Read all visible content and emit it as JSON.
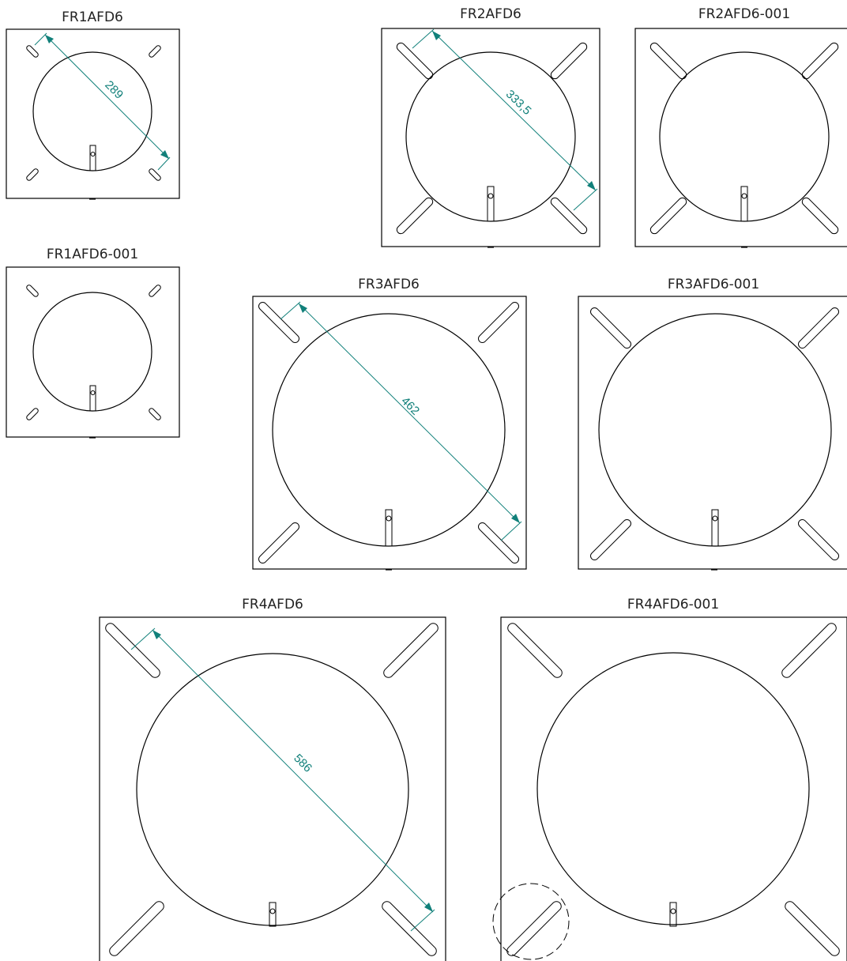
{
  "colors": {
    "line": "#000000",
    "dimension": "#11807a",
    "label": "#222222",
    "background": "#ffffff"
  },
  "panels": [
    {
      "title": "FR1AFD6",
      "dimension": "289"
    },
    {
      "title": "FR2AFD6",
      "dimension": "333,5"
    },
    {
      "title": "FR2AFD6-001"
    },
    {
      "title": "FR1AFD6-001"
    },
    {
      "title": "FR3AFD6",
      "dimension": "462"
    },
    {
      "title": "FR3AFD6-001"
    },
    {
      "title": "FR4AFD6",
      "dimension": "586"
    },
    {
      "title": "FR4AFD6-001",
      "detail_marker": "dashed-circle"
    }
  ]
}
